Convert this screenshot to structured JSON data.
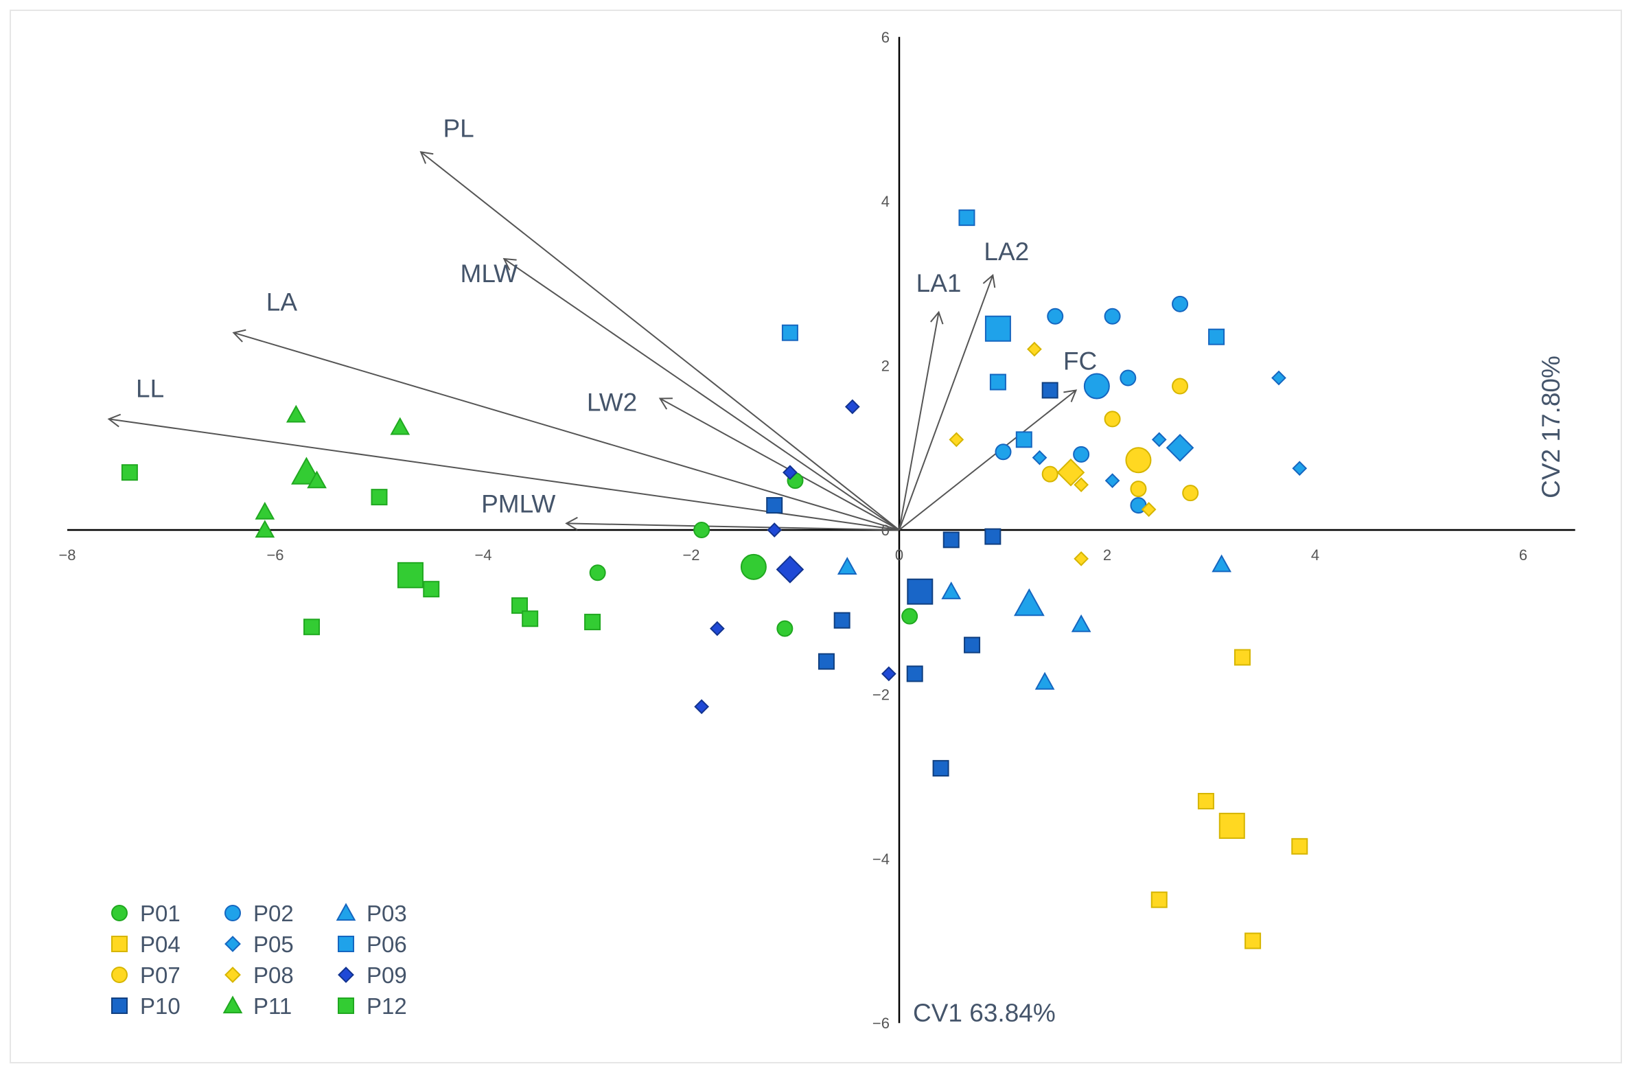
{
  "chart_data": {
    "type": "scatter",
    "title": "",
    "xlabel": "CV1 63.84%",
    "ylabel": "CV2 17.80%",
    "xlim": [
      -8,
      6.5
    ],
    "ylim": [
      -6,
      6
    ],
    "x_ticks": [
      {
        "value": -8,
        "label": "−8"
      },
      {
        "value": -6,
        "label": "−6"
      },
      {
        "value": -4,
        "label": "−4"
      },
      {
        "value": -2,
        "label": "−2"
      },
      {
        "value": 0,
        "label": "0"
      },
      {
        "value": 2,
        "label": "2"
      },
      {
        "value": 4,
        "label": "4"
      },
      {
        "value": 6,
        "label": "6"
      }
    ],
    "y_ticks": [
      {
        "value": 6,
        "label": "6"
      },
      {
        "value": 4,
        "label": "4"
      },
      {
        "value": 2,
        "label": "2"
      },
      {
        "value": 0,
        "label": "0"
      },
      {
        "value": -2,
        "label": "−2"
      },
      {
        "value": -4,
        "label": "−4"
      },
      {
        "value": -6,
        "label": "−6"
      }
    ],
    "grid": false,
    "legend_position": "bottom-left",
    "vectors": [
      {
        "name": "PL",
        "x": -4.6,
        "y": 4.6
      },
      {
        "name": "MLW",
        "x": -3.8,
        "y": 3.3
      },
      {
        "name": "LA",
        "x": -6.4,
        "y": 2.4
      },
      {
        "name": "LL",
        "x": -7.6,
        "y": 1.35
      },
      {
        "name": "LW2",
        "x": -2.3,
        "y": 1.6
      },
      {
        "name": "PMLW",
        "x": -3.2,
        "y": 0.08
      },
      {
        "name": "LA1",
        "x": 0.38,
        "y": 2.65
      },
      {
        "name": "LA2",
        "x": 0.9,
        "y": 3.1
      },
      {
        "name": "FC",
        "x": 1.7,
        "y": 1.7
      }
    ],
    "series": [
      {
        "name": "P01",
        "marker": "circle",
        "color": "#33cc33",
        "stroke": "#20a820",
        "points": [
          [
            -1.0,
            0.6
          ],
          [
            -1.9,
            0.0
          ],
          [
            -2.9,
            -0.52
          ],
          [
            -1.4,
            -0.45,
            "big"
          ],
          [
            -1.1,
            -1.2
          ],
          [
            0.1,
            -1.05
          ]
        ]
      },
      {
        "name": "P02",
        "marker": "circle",
        "color": "#1fa2ea",
        "stroke": "#1566c0",
        "points": [
          [
            1.5,
            2.6
          ],
          [
            2.05,
            2.6
          ],
          [
            2.7,
            2.75
          ],
          [
            1.9,
            1.75,
            "big"
          ],
          [
            2.2,
            1.85
          ],
          [
            1.0,
            0.95
          ],
          [
            1.75,
            0.92
          ],
          [
            2.3,
            0.3
          ]
        ]
      },
      {
        "name": "P03",
        "marker": "triangle",
        "color": "#1fa2ea",
        "stroke": "#1566c0",
        "points": [
          [
            -0.5,
            -0.45
          ],
          [
            0.5,
            -0.75
          ],
          [
            1.25,
            -0.9,
            "big"
          ],
          [
            1.75,
            -1.15
          ],
          [
            1.4,
            -1.85
          ],
          [
            3.1,
            -0.42
          ]
        ]
      },
      {
        "name": "P04",
        "marker": "square",
        "color": "#ffd821",
        "stroke": "#d6b500",
        "points": [
          [
            3.3,
            -1.55
          ],
          [
            2.95,
            -3.3
          ],
          [
            3.2,
            -3.6,
            "big"
          ],
          [
            3.85,
            -3.85
          ],
          [
            2.5,
            -4.5
          ],
          [
            3.4,
            -5.0
          ]
        ]
      },
      {
        "name": "P05",
        "marker": "diamond",
        "color": "#1fa2ea",
        "stroke": "#1566c0",
        "points": [
          [
            1.35,
            0.88
          ],
          [
            2.5,
            1.1
          ],
          [
            2.7,
            1.0,
            "big"
          ],
          [
            2.05,
            0.6
          ],
          [
            3.65,
            1.85
          ],
          [
            3.85,
            0.75
          ]
        ]
      },
      {
        "name": "P06",
        "marker": "square",
        "color": "#1fa2ea",
        "stroke": "#1566c0",
        "points": [
          [
            0.65,
            3.8
          ],
          [
            -1.05,
            2.4
          ],
          [
            0.95,
            2.45,
            "big"
          ],
          [
            0.95,
            1.8
          ],
          [
            3.05,
            2.35
          ],
          [
            1.2,
            1.1
          ]
        ]
      },
      {
        "name": "P07",
        "marker": "circle",
        "color": "#ffd821",
        "stroke": "#d6b500",
        "points": [
          [
            2.7,
            1.75
          ],
          [
            2.05,
            1.35
          ],
          [
            1.45,
            0.68
          ],
          [
            2.3,
            0.85,
            "big"
          ],
          [
            2.3,
            0.5
          ],
          [
            2.8,
            0.45
          ]
        ]
      },
      {
        "name": "P08",
        "marker": "diamond",
        "color": "#ffd821",
        "stroke": "#d6b500",
        "points": [
          [
            1.3,
            2.2
          ],
          [
            0.55,
            1.1
          ],
          [
            1.65,
            0.7,
            "big"
          ],
          [
            1.75,
            0.55
          ],
          [
            2.4,
            0.25
          ],
          [
            1.75,
            -0.35
          ]
        ]
      },
      {
        "name": "P09",
        "marker": "diamond",
        "color": "#1f49d6",
        "stroke": "#12338f",
        "points": [
          [
            -0.45,
            1.5
          ],
          [
            -1.05,
            0.7
          ],
          [
            -1.2,
            0.0
          ],
          [
            -1.05,
            -0.48,
            "big"
          ],
          [
            -1.75,
            -1.2
          ],
          [
            -1.9,
            -2.15
          ],
          [
            -0.1,
            -1.75
          ]
        ]
      },
      {
        "name": "P10",
        "marker": "square",
        "color": "#1966c8",
        "stroke": "#103f80",
        "points": [
          [
            1.45,
            1.7
          ],
          [
            -1.2,
            0.3
          ],
          [
            0.5,
            -0.12
          ],
          [
            0.9,
            -0.08
          ],
          [
            0.2,
            -0.75,
            "big"
          ],
          [
            -0.55,
            -1.1
          ],
          [
            -0.7,
            -1.6
          ],
          [
            0.15,
            -1.75
          ],
          [
            0.7,
            -1.4
          ],
          [
            0.4,
            -2.9
          ]
        ]
      },
      {
        "name": "P11",
        "marker": "triangle",
        "color": "#33cc33",
        "stroke": "#20a820",
        "points": [
          [
            -5.8,
            1.4
          ],
          [
            -4.8,
            1.25
          ],
          [
            -5.7,
            0.7,
            "big"
          ],
          [
            -5.6,
            0.6
          ],
          [
            -6.1,
            0.22
          ],
          [
            -6.1,
            0.0
          ]
        ]
      },
      {
        "name": "P12",
        "marker": "square",
        "color": "#33cc33",
        "stroke": "#20a820",
        "points": [
          [
            -7.4,
            0.7
          ],
          [
            -5.0,
            0.4
          ],
          [
            -4.7,
            -0.55,
            "big"
          ],
          [
            -4.5,
            -0.72
          ],
          [
            -3.65,
            -0.92
          ],
          [
            -3.55,
            -1.08
          ],
          [
            -2.95,
            -1.12
          ],
          [
            -5.65,
            -1.18
          ]
        ]
      }
    ]
  }
}
